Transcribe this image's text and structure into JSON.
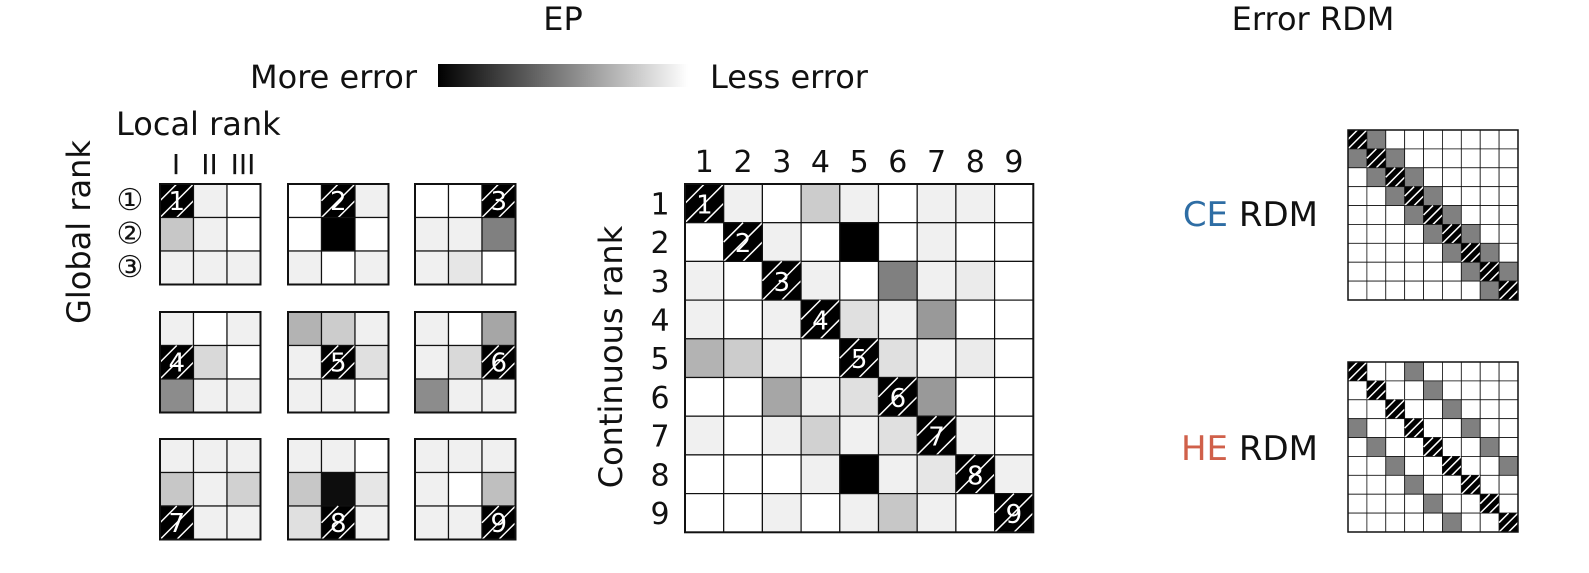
{
  "titles": {
    "ep": "EP",
    "rdm": "Error RDM"
  },
  "legend": {
    "more": "More error",
    "less": "Less error",
    "dark": "#000000",
    "light": "#ffffff"
  },
  "local_grid": {
    "local_rank_label": "Local rank",
    "global_rank_label": "Global rank",
    "column_labels": [
      "I",
      "II",
      "III"
    ],
    "row_labels": [
      "①",
      "②",
      "③"
    ],
    "panels": [
      {
        "number": "1",
        "marked": [
          0,
          0
        ],
        "cells": [
          [
            0,
            0.06,
            0
          ],
          [
            0.22,
            0.06,
            0
          ],
          [
            0.06,
            0.06,
            0.06
          ]
        ]
      },
      {
        "number": "2",
        "marked": [
          0,
          1
        ],
        "cells": [
          [
            0,
            0,
            0.06
          ],
          [
            0,
            1,
            0
          ],
          [
            0.06,
            0,
            0.06
          ]
        ]
      },
      {
        "number": "3",
        "marked": [
          0,
          2
        ],
        "cells": [
          [
            0,
            0,
            0
          ],
          [
            0.06,
            0.06,
            0.5
          ],
          [
            0.06,
            0.1,
            0
          ]
        ]
      },
      {
        "number": "4",
        "marked": [
          1,
          0
        ],
        "cells": [
          [
            0.06,
            0,
            0.06
          ],
          [
            0,
            0.15,
            0
          ],
          [
            0.45,
            0.06,
            0.06
          ]
        ]
      },
      {
        "number": "5",
        "marked": [
          1,
          1
        ],
        "cells": [
          [
            0.3,
            0.2,
            0.06
          ],
          [
            0.06,
            0,
            0.12
          ],
          [
            0.06,
            0.06,
            0
          ]
        ]
      },
      {
        "number": "6",
        "marked": [
          1,
          2
        ],
        "cells": [
          [
            0.06,
            0,
            0.35
          ],
          [
            0.06,
            0.15,
            0
          ],
          [
            0.45,
            0.06,
            0.06
          ]
        ]
      },
      {
        "number": "7",
        "marked": [
          2,
          0
        ],
        "cells": [
          [
            0.06,
            0.06,
            0.06
          ],
          [
            0.22,
            0.06,
            0.18
          ],
          [
            0,
            0.06,
            0.06
          ]
        ]
      },
      {
        "number": "8",
        "marked": [
          2,
          1
        ],
        "cells": [
          [
            0.06,
            0.06,
            0
          ],
          [
            0.22,
            0.95,
            0.1
          ],
          [
            0.12,
            0,
            0.06
          ]
        ]
      },
      {
        "number": "9",
        "marked": [
          2,
          2
        ],
        "cells": [
          [
            0.06,
            0.06,
            0.06
          ],
          [
            0.06,
            0,
            0.25
          ],
          [
            0.06,
            0.06,
            0
          ]
        ]
      }
    ]
  },
  "continuous_matrix": {
    "axis_label": "Continuous rank",
    "labels": [
      "1",
      "2",
      "3",
      "4",
      "5",
      "6",
      "7",
      "8",
      "9"
    ],
    "values": [
      [
        1,
        0.06,
        0,
        0.2,
        0.06,
        0,
        0.06,
        0.06,
        0
      ],
      [
        0,
        1,
        0.06,
        0,
        1,
        0,
        0.06,
        0,
        0
      ],
      [
        0.06,
        0,
        1,
        0.06,
        0,
        0.5,
        0.06,
        0.08,
        0
      ],
      [
        0.06,
        0,
        0.06,
        1,
        0.12,
        0.06,
        0.4,
        0,
        0
      ],
      [
        0.3,
        0.2,
        0.06,
        0,
        1,
        0.12,
        0.06,
        0.08,
        0
      ],
      [
        0,
        0,
        0.35,
        0.06,
        0.12,
        1,
        0.4,
        0,
        0
      ],
      [
        0.06,
        0,
        0.06,
        0.18,
        0.06,
        0.12,
        1,
        0.06,
        0
      ],
      [
        0,
        0,
        0,
        0.06,
        1,
        0.06,
        0.1,
        1,
        0.06
      ],
      [
        0,
        0,
        0.06,
        0,
        0.06,
        0.22,
        0.06,
        0,
        1
      ]
    ]
  },
  "rdms": [
    {
      "prefix": "CE",
      "suffix": " RDM",
      "prefix_color": "#2e6da4",
      "size": 9,
      "values": [
        [
          1,
          0.5,
          0,
          0,
          0,
          0,
          0,
          0,
          0
        ],
        [
          0.5,
          1,
          0.5,
          0,
          0,
          0,
          0,
          0,
          0
        ],
        [
          0,
          0.5,
          1,
          0.5,
          0,
          0,
          0,
          0,
          0
        ],
        [
          0,
          0,
          0.5,
          1,
          0.5,
          0,
          0,
          0,
          0
        ],
        [
          0,
          0,
          0,
          0.5,
          1,
          0.5,
          0,
          0,
          0
        ],
        [
          0,
          0,
          0,
          0,
          0.5,
          1,
          0.5,
          0,
          0
        ],
        [
          0,
          0,
          0,
          0,
          0,
          0.5,
          1,
          0.5,
          0
        ],
        [
          0,
          0,
          0,
          0,
          0,
          0,
          0.5,
          1,
          0.5
        ],
        [
          0,
          0,
          0,
          0,
          0,
          0,
          0,
          0.5,
          1
        ]
      ]
    },
    {
      "prefix": "HE",
      "suffix": " RDM",
      "prefix_color": "#d0604a",
      "size": 9,
      "values": [
        [
          1,
          0,
          0,
          0.5,
          0,
          0,
          0,
          0,
          0
        ],
        [
          0,
          1,
          0,
          0,
          0.5,
          0,
          0,
          0,
          0
        ],
        [
          0,
          0,
          1,
          0,
          0,
          0.5,
          0,
          0,
          0
        ],
        [
          0.5,
          0,
          0,
          1,
          0,
          0,
          0.5,
          0,
          0
        ],
        [
          0,
          0.5,
          0,
          0,
          1,
          0,
          0,
          0.5,
          0
        ],
        [
          0,
          0,
          0.5,
          0,
          0,
          1,
          0,
          0,
          0.5
        ],
        [
          0,
          0,
          0,
          0.5,
          0,
          0,
          1,
          0,
          0
        ],
        [
          0,
          0,
          0,
          0,
          0.5,
          0,
          0,
          1,
          0
        ],
        [
          0,
          0,
          0,
          0,
          0,
          0.5,
          0,
          0,
          1
        ]
      ]
    }
  ]
}
